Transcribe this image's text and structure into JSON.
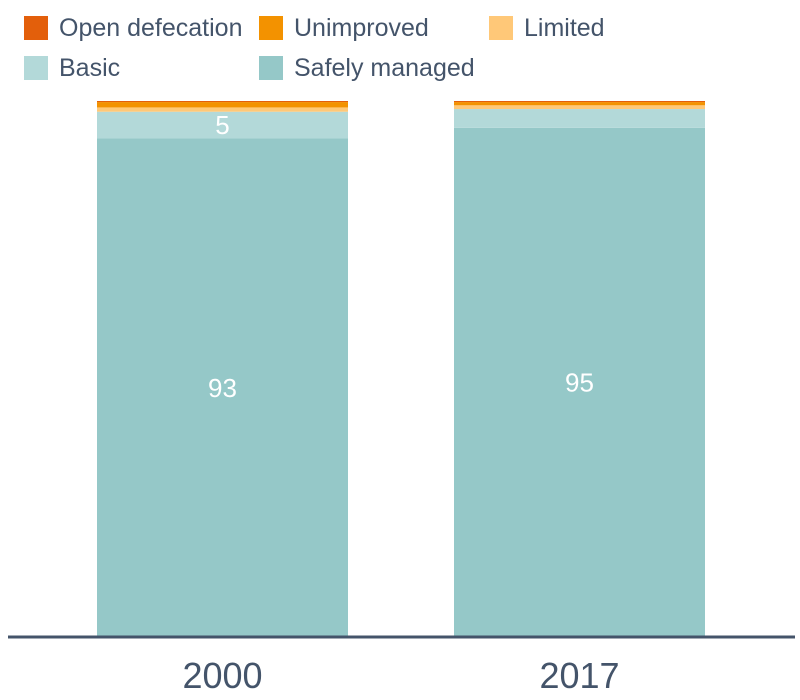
{
  "chart_data": {
    "type": "bar",
    "stacked": true,
    "categories": [
      "2000",
      "2017"
    ],
    "ylim": [
      0,
      100
    ],
    "legend_position": "top-left",
    "grid": false,
    "series": [
      {
        "name": "Safely managed",
        "values": [
          93,
          95
        ],
        "color": "#95c8c8",
        "labels": [
          "93",
          "95"
        ]
      },
      {
        "name": "Basic",
        "values": [
          5,
          3.5
        ],
        "color": "#b3d9d9",
        "labels": [
          "5",
          ""
        ]
      },
      {
        "name": "Limited",
        "values": [
          0.8,
          0.7
        ],
        "color": "#ffc878",
        "labels": [
          "",
          ""
        ]
      },
      {
        "name": "Unimproved",
        "values": [
          1,
          0.6
        ],
        "color": "#f39200",
        "labels": [
          "",
          ""
        ]
      },
      {
        "name": "Open defecation",
        "values": [
          0.2,
          0.2
        ],
        "color": "#e35f0b",
        "labels": [
          "",
          ""
        ]
      }
    ],
    "legend_order": [
      "Open defecation",
      "Unimproved",
      "Limited",
      "Basic",
      "Safely managed"
    ],
    "axis_color": "#44546a",
    "text_color": "#44546a"
  }
}
